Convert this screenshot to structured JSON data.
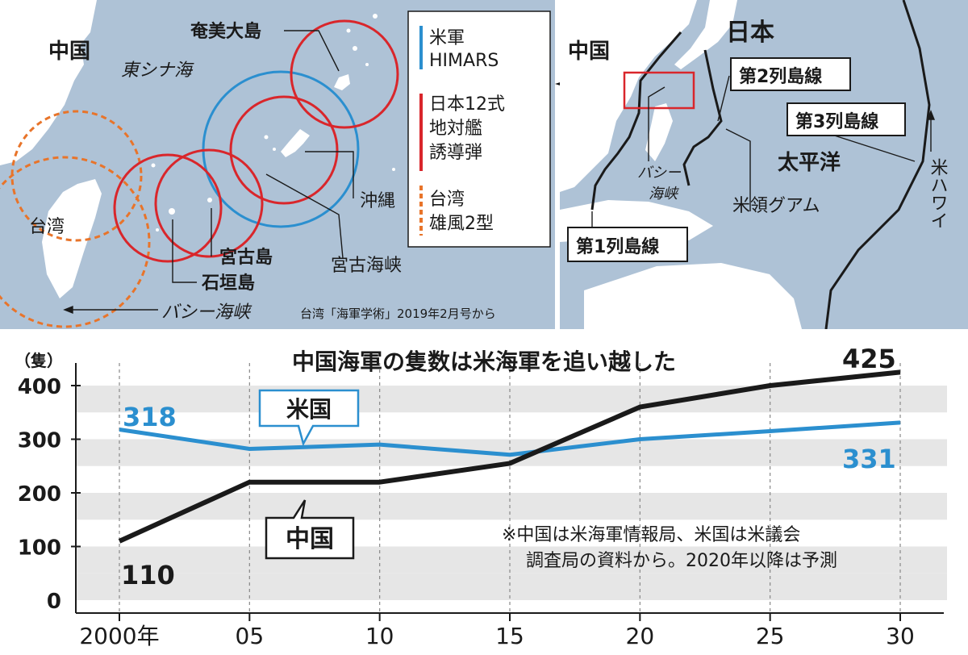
{
  "left_map": {
    "labels": {
      "china": "中国",
      "east_china_sea": "東シナ海",
      "amami": "奄美大島",
      "okinawa": "沖縄",
      "miyako_island": "宮古島",
      "ishigaki": "石垣島",
      "miyako_strait": "宮古海峡",
      "bashi_channel": "バシー海峡",
      "taiwan": "台湾",
      "source": "台湾「海軍学術」2019年2月号から"
    },
    "legend": {
      "us_line1": "米軍",
      "us_line2": "HIMARS",
      "jp_line1": "日本12式",
      "jp_line2": "地対艦",
      "jp_line3": "誘導弾",
      "tw_line1": "台湾",
      "tw_line2": "雄風2型"
    },
    "colors": {
      "us": "#2b8fcf",
      "japan": "#d9262b",
      "taiwan": "#e8742a"
    }
  },
  "right_map": {
    "labels": {
      "china": "中国",
      "japan": "日本",
      "chain1": "第1列島線",
      "chain2": "第2列島線",
      "chain3": "第3列島線",
      "pacific": "太平洋",
      "bashi1": "バシー",
      "bashi2": "海峡",
      "guam": "米領グアム",
      "hawaii": "米ハワイ"
    }
  },
  "chart_data": {
    "type": "line",
    "title": "中国海軍の隻数は米海軍を追い越した",
    "ylabel": "（隻）",
    "x": [
      2000,
      2005,
      2010,
      2015,
      2020,
      2025,
      2030
    ],
    "x_tick_labels": [
      "2000年",
      "05",
      "10",
      "15",
      "20",
      "25",
      "30"
    ],
    "y_tick_labels": [
      "0",
      "100",
      "200",
      "300",
      "400"
    ],
    "ylim": [
      0,
      440
    ],
    "series": [
      {
        "name": "米国",
        "color": "#2b8fcf",
        "values": [
          318,
          282,
          290,
          271,
          300,
          315,
          331
        ]
      },
      {
        "name": "中国",
        "color": "#1a1a1a",
        "values": [
          110,
          220,
          220,
          255,
          360,
          400,
          425
        ]
      }
    ],
    "data_labels": {
      "us_start": "318",
      "us_end": "331",
      "cn_start": "110",
      "cn_end": "425"
    },
    "note_line1": "※中国は米海軍情報局、米国は米議会",
    "note_line2": "調査局の資料から。2020年以降は予測"
  }
}
